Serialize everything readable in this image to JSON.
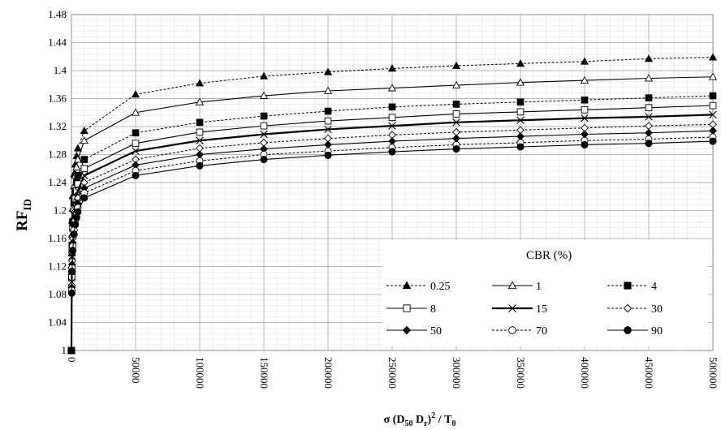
{
  "chart_data": {
    "type": "line",
    "title": "",
    "ylabel": {
      "main": "RF",
      "sub": "ID"
    },
    "xlabel": {
      "p1": "σ (D",
      "s1": "50",
      "p2": " D",
      "s2": "r",
      "p3": ")",
      "sup": "2",
      "p4": " / T",
      "s3": "0"
    },
    "xlim": [
      0,
      500000
    ],
    "ylim": [
      1.0,
      1.48
    ],
    "x_ticks": [
      "0",
      "50000",
      "100000",
      "150000",
      "200000",
      "250000",
      "300000",
      "350000",
      "400000",
      "450000",
      "500000"
    ],
    "y_ticks": [
      "1",
      "1.04",
      "1.08",
      "1.12",
      "1.16",
      "1.2",
      "1.24",
      "1.28",
      "1.32",
      "1.36",
      "1.4",
      "1.44",
      "1.48"
    ],
    "grid": true,
    "legend_title": "CBR (%)",
    "legend_position": "center-right",
    "x": [
      0,
      250,
      500,
      1000,
      2000,
      3000,
      4000,
      5000,
      10000,
      50000,
      100000,
      150000,
      200000,
      250000,
      300000,
      350000,
      400000,
      450000,
      500000
    ],
    "series": [
      {
        "name": "0.25",
        "marker": "triangle-filled",
        "line": "dashed",
        "values": [
          1.0,
          1.139,
          1.186,
          1.221,
          1.252,
          1.266,
          1.278,
          1.289,
          1.314,
          1.366,
          1.382,
          1.392,
          1.398,
          1.403,
          1.407,
          1.41,
          1.413,
          1.417,
          1.419
        ]
      },
      {
        "name": "1",
        "marker": "triangle-open",
        "line": "solid",
        "values": [
          1.0,
          1.122,
          1.166,
          1.203,
          1.235,
          1.25,
          1.262,
          1.273,
          1.3,
          1.34,
          1.355,
          1.364,
          1.371,
          1.375,
          1.379,
          1.383,
          1.386,
          1.389,
          1.391
        ]
      },
      {
        "name": "4",
        "marker": "square-filled",
        "line": "dashed",
        "values": [
          1.0,
          1.11,
          1.15,
          1.184,
          1.212,
          1.228,
          1.24,
          1.25,
          1.273,
          1.311,
          1.326,
          1.335,
          1.342,
          1.348,
          1.352,
          1.355,
          1.358,
          1.361,
          1.364
        ]
      },
      {
        "name": "8",
        "marker": "square-open",
        "line": "solid",
        "values": [
          1.0,
          1.104,
          1.142,
          1.175,
          1.202,
          1.217,
          1.228,
          1.238,
          1.26,
          1.296,
          1.312,
          1.321,
          1.328,
          1.333,
          1.338,
          1.341,
          1.344,
          1.347,
          1.35
        ]
      },
      {
        "name": "15",
        "marker": "cross",
        "line": "solid-thick",
        "values": [
          1.0,
          1.098,
          1.135,
          1.168,
          1.193,
          1.208,
          1.219,
          1.228,
          1.25,
          1.285,
          1.3,
          1.309,
          1.316,
          1.321,
          1.326,
          1.329,
          1.332,
          1.334,
          1.337
        ]
      },
      {
        "name": "30",
        "marker": "diamond-open",
        "line": "dashed",
        "values": [
          1.0,
          1.093,
          1.128,
          1.16,
          1.185,
          1.199,
          1.209,
          1.218,
          1.24,
          1.273,
          1.289,
          1.297,
          1.303,
          1.308,
          1.312,
          1.315,
          1.318,
          1.321,
          1.323
        ]
      },
      {
        "name": "50",
        "marker": "diamond-filled",
        "line": "solid",
        "values": [
          1.0,
          1.09,
          1.123,
          1.154,
          1.178,
          1.192,
          1.202,
          1.21,
          1.232,
          1.265,
          1.28,
          1.288,
          1.294,
          1.299,
          1.303,
          1.306,
          1.309,
          1.311,
          1.314
        ]
      },
      {
        "name": "70",
        "marker": "circle-open",
        "line": "dashed",
        "values": [
          1.0,
          1.086,
          1.118,
          1.149,
          1.172,
          1.186,
          1.196,
          1.204,
          1.225,
          1.257,
          1.271,
          1.28,
          1.285,
          1.29,
          1.294,
          1.297,
          1.3,
          1.302,
          1.305
        ]
      },
      {
        "name": "90",
        "marker": "circle-filled",
        "line": "solid",
        "values": [
          1.0,
          1.082,
          1.113,
          1.143,
          1.166,
          1.18,
          1.19,
          1.198,
          1.218,
          1.25,
          1.264,
          1.273,
          1.279,
          1.284,
          1.288,
          1.291,
          1.294,
          1.296,
          1.299
        ]
      }
    ]
  }
}
